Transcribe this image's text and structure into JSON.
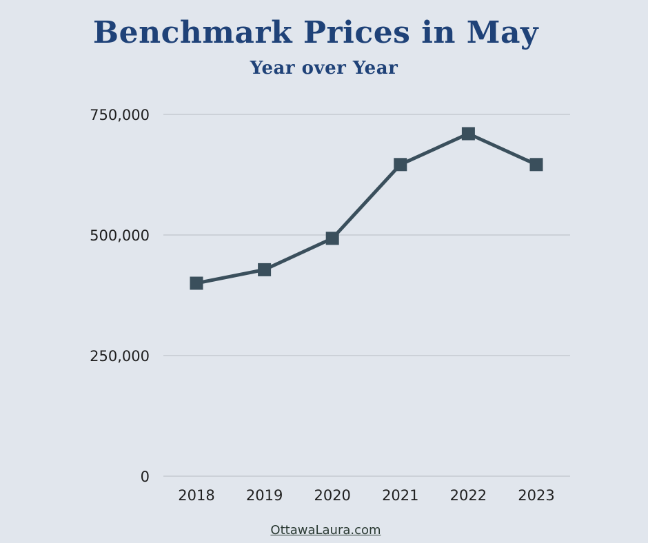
{
  "title": "Benchmark Prices in May",
  "subtitle": "Year over Year",
  "footer": "OttawaLaura.com",
  "colors": {
    "background": "#e1e6ed",
    "title": "#1f4278",
    "series": "#3a4f5c",
    "grid": "#b8bcc2"
  },
  "chart_data": {
    "type": "line",
    "title": "Benchmark Prices in May",
    "subtitle": "Year over Year",
    "xlabel": "",
    "ylabel": "",
    "categories": [
      "2018",
      "2019",
      "2020",
      "2021",
      "2022",
      "2023"
    ],
    "series": [
      {
        "values": [
          400000,
          428000,
          493000,
          646000,
          710000,
          646000
        ]
      }
    ],
    "ylim": [
      0,
      750000
    ],
    "yticks": [
      0,
      250000,
      500000,
      750000
    ],
    "ytick_labels": [
      "0",
      "250,000",
      "500,000",
      "750,000"
    ],
    "grid": true,
    "marker": "square"
  }
}
